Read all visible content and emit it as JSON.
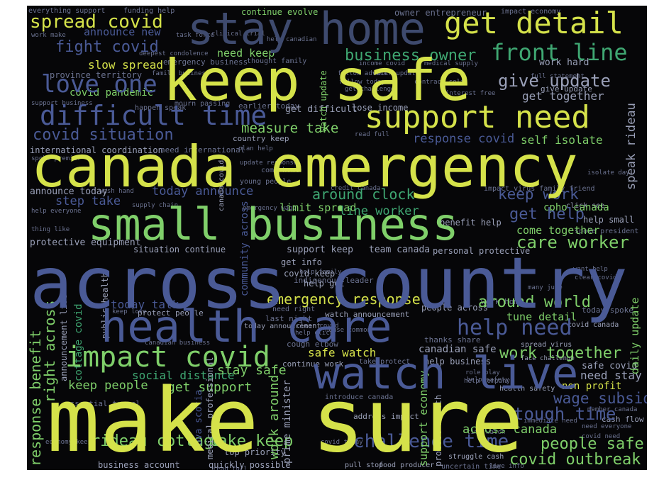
{
  "palette": {
    "yellow": "#d5e24a",
    "light_green": "#7fcf6a",
    "green": "#3fa772",
    "teal": "#2a8a86",
    "blue": "#4a5a96",
    "slate": "#3e4a6e",
    "gray": "#6b7290",
    "dim": "#4f586c",
    "background": "#060608"
  },
  "words": {
    "make_sure": "make sure",
    "across_country": "across country",
    "canada_emergency": "canada emergency",
    "keep_safe": "keep safe",
    "small_business": "small business",
    "health_care": "health care",
    "watch_live": "watch live",
    "stay_home": "stay home",
    "support_need": "support need",
    "get_detail": "get detail",
    "front_line": "front line",
    "difficult_time": "difficult time",
    "love_one": "love one",
    "spread_covid": "spread covid",
    "fight_covid": "fight covid",
    "impact_covid": "impact covid",
    "help_need": "help need",
    "emergency_response": "emergency response",
    "give_update": "give update",
    "business_owner": "business owner",
    "covid_situation": "covid situation",
    "response_covid": "response covid",
    "self_isolate": "self isolate",
    "measure_take": "measure take",
    "around_clock": "around clock",
    "keep_work": "keep work",
    "get_help": "get help",
    "care_worker": "care worker",
    "come_together": "come together",
    "around_world": "around world",
    "work_together": "work together",
    "tough_time": "tough time",
    "people_safe": "people safe",
    "covid_outbreak": "covid outbreak",
    "rideau_cottage": "rideau cottage",
    "take_keep": "take keep",
    "challenge_time": "challenge time",
    "get_support": "get support",
    "keep_people": "keep people",
    "stay_safe": "stay safe",
    "safe_watch": "safe watch",
    "wage_subsidy": "wage subsidy",
    "response_benefit": "response benefit",
    "work_around": "work around",
    "need_keep": "need keep",
    "announce_new": "announce new",
    "slow_spread": "slow spread",
    "continue_evolve": "continue evolve",
    "covid_pandemic": "covid pandemic",
    "today_announce": "today announce",
    "step_take": "step take",
    "limit_spread": "limit spread",
    "line_worker": "line worker",
    "get_together": "get together",
    "speak_rideau": "speak rideau",
    "tune_detail": "tune detail",
    "today_talk": "today talk",
    "right_across": "right across",
    "support_economy": "support economy",
    "across_canada": "across canada",
    "non_profit": "non profit",
    "need_stay": "need stay",
    "safe_covid": "safe covid",
    "social_distance": "social distance",
    "daily_update": "daily update",
    "canadian_safe": "canadian safe",
    "covid_keep": "covid keep",
    "help_get": "help get",
    "get_info": "get info",
    "support_keep": "support keep",
    "team_canada": "team canada",
    "personal_protective": "personal protective",
    "situation_continue": "situation continue",
    "protective_equipment": "protective equipment",
    "announce_today": "announce today",
    "help_small": "help small",
    "cpho_canada": "cpho canada",
    "benefit_help": "benefit help",
    "get_difficult": "get difficult",
    "lose_income": "lose income",
    "watch_update": "watch update",
    "work_hard": "work hard",
    "give_update_small": "give update",
    "international_coordination": "international coordination",
    "need_international": "need international",
    "funding_help": "funding help",
    "everything_support": "everything support",
    "owner_entrepreneur": "owner entrepreneur",
    "impact_economy": "impact economy",
    "business_account": "business account",
    "quickly_possible": "quickly possible",
    "top_priority": "top priority",
    "prime_minister": "prime minister",
    "pull_stop": "pull stop",
    "food_producer": "food producer",
    "uncertain_time": "uncertain time",
    "cash_flow": "cash flow",
    "struggle_cash": "struggle cash",
    "address_impact": "address impact",
    "protect_health": "protect health",
    "nova_scotia": "nova scotia",
    "community_across": "community across",
    "today_spoke": "today spoke",
    "spread_virus": "spread virus",
    "thanks_share": "thanks share",
    "help_business": "help business",
    "take_protect": "take protect",
    "continue_work": "continue work",
    "cough_elbow": "cough elbow",
    "health_safety": "health safety",
    "face_challenge": "face challenge",
    "covid_canada": "covid canada",
    "need_everyone": "need everyone",
    "covid_need": "covid need",
    "want_help": "want help",
    "emergency_business": "emergency business",
    "help_canadian": "help canadian",
    "income_covid": "income covid",
    "medical_supply": "medical supply",
    "follow_advice": "follow advice",
    "contract_self": "contract self",
    "spoke_premier": "spoke premier",
    "wash_hand": "wash hand",
    "supply_chain": "supply chain",
    "young_people": "young people",
    "come_home": "come home",
    "country_keep": "country keep",
    "impact_virus_family_friend": "impact virus family friend",
    "watch_announcement": "watch announcement",
    "people_across": "people across",
    "house_common": "house common",
    "last_night": "last night",
    "need_right": "need right",
    "protect_people": "protect people",
    "today_announcement": "today announcement",
    "canadian_business": "canadian business",
    "essential_travel": "essential travel",
    "medical_professional": "medical professional",
    "economy_keep": "economy keep",
    "work_make": "work make",
    "task_force": "task force",
    "clinical_trial": "clinical trial",
    "deepest_condolence": "deepest condolence",
    "thought_family": "thought family",
    "support_business": "support business",
    "happen_speak": "happen speak",
    "mourn_passing": "mourn passing",
    "earlier_today": "earlier today",
    "family_business": "family business",
    "province_territory": "province territory",
    "spoke_president": "spoke president",
    "emergency_wage": "emergency wage",
    "indigenous_leader": "indigenous leader",
    "canada_covid": "canada covid",
    "thing_like": "thing like",
    "help_everyone": "help everyone",
    "clear_covid": "clear covid",
    "many_june": "many june",
    "role_play": "role play",
    "help_company": "help company",
    "introduce_canada": "introduce canada",
    "member_canada": "member canada",
    "immediate_need": "immediate need",
    "read_full": "read full",
    "plan_help": "plan help",
    "update_response": "update response",
    "help_family": "help family",
    "interest_free": "interest free",
    "full_statement": "full statement",
    "follow_today": "follow today",
    "get_challenge": "get challenge",
    "help_click": "help click",
    "live_info": "live info",
    "time_watch": "time watch",
    "covid_today": "covid today",
    "cottage_covid": "cottage covid",
    "public_health": "public health",
    "announcement_live": "announcement live",
    "keep_love": "keep love",
    "help_safety": "help safety",
    "click_see": "click see",
    "work_home": "work home",
    "credit_canada": "credit canada",
    "isolate_day": "isolate day",
    "daily_update_small": "daily update"
  }
}
